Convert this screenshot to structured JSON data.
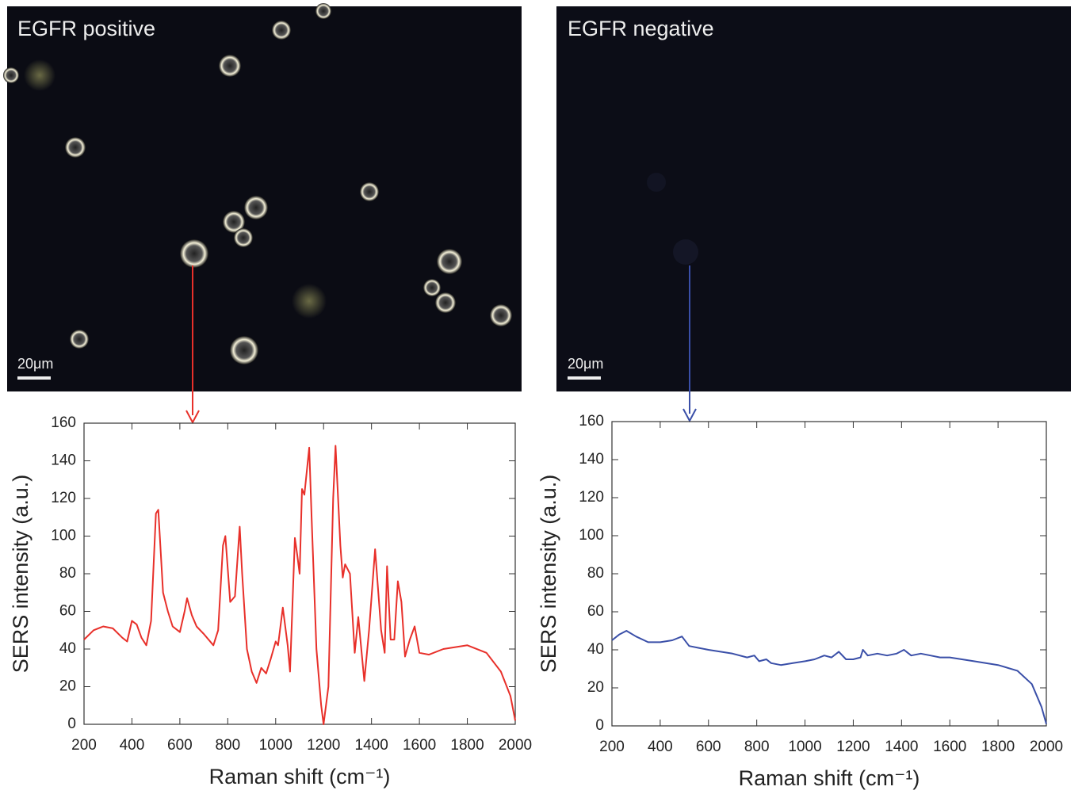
{
  "images": [
    {
      "label": "EGFR positive",
      "scale_bar": "20μm"
    },
    {
      "label": "EGFR negative",
      "scale_bar": "20μm"
    }
  ],
  "chart_data": [
    {
      "type": "line",
      "x_label": "Raman shift (cm⁻¹)",
      "y_label": "SERS intensity (a.u.)",
      "xlim": [
        200,
        2000
      ],
      "ylim": [
        0,
        160
      ],
      "xticks": [
        200,
        400,
        600,
        800,
        1000,
        1200,
        1400,
        1600,
        1800,
        2000
      ],
      "yticks": [
        0,
        20,
        40,
        60,
        80,
        100,
        120,
        140,
        160
      ],
      "x": [
        200,
        240,
        280,
        320,
        360,
        380,
        400,
        420,
        440,
        460,
        480,
        500,
        510,
        530,
        550,
        570,
        600,
        620,
        630,
        650,
        670,
        700,
        740,
        760,
        780,
        790,
        810,
        830,
        850,
        860,
        880,
        900,
        920,
        940,
        960,
        980,
        1000,
        1010,
        1030,
        1050,
        1060,
        1080,
        1090,
        1100,
        1110,
        1120,
        1140,
        1150,
        1170,
        1190,
        1200,
        1220,
        1240,
        1250,
        1270,
        1280,
        1290,
        1310,
        1330,
        1345,
        1370,
        1390,
        1415,
        1440,
        1455,
        1465,
        1480,
        1495,
        1510,
        1525,
        1540,
        1560,
        1580,
        1600,
        1640,
        1700,
        1800,
        1880,
        1940,
        1980,
        2000
      ],
      "series": [
        {
          "color": "#e8302a",
          "values": [
            45,
            50,
            52,
            51,
            46,
            44,
            55,
            53,
            46,
            42,
            55,
            112,
            114,
            70,
            60,
            52,
            49,
            60,
            67,
            58,
            52,
            48,
            42,
            50,
            95,
            100,
            65,
            68,
            105,
            80,
            40,
            28,
            22,
            30,
            27,
            35,
            44,
            42,
            62,
            42,
            28,
            99,
            90,
            80,
            125,
            122,
            147,
            110,
            40,
            10,
            0,
            20,
            120,
            148,
            95,
            78,
            85,
            80,
            38,
            57,
            23,
            50,
            93,
            50,
            38,
            84,
            45,
            45,
            76,
            65,
            36,
            45,
            52,
            38,
            37,
            40,
            42,
            38,
            28,
            15,
            2
          ]
        }
      ]
    },
    {
      "type": "line",
      "x_label": "Raman shift (cm⁻¹)",
      "y_label": "SERS intensity (a.u.)",
      "xlim": [
        200,
        2000
      ],
      "ylim": [
        0,
        160
      ],
      "xticks": [
        200,
        400,
        600,
        800,
        1000,
        1200,
        1400,
        1600,
        1800,
        2000
      ],
      "yticks": [
        0,
        20,
        40,
        60,
        80,
        100,
        120,
        140,
        160
      ],
      "x": [
        200,
        230,
        260,
        300,
        350,
        400,
        450,
        490,
        520,
        560,
        600,
        650,
        700,
        760,
        790,
        810,
        840,
        860,
        900,
        950,
        1000,
        1040,
        1080,
        1110,
        1140,
        1170,
        1200,
        1230,
        1240,
        1260,
        1300,
        1340,
        1380,
        1410,
        1440,
        1480,
        1520,
        1560,
        1600,
        1700,
        1800,
        1880,
        1940,
        1980,
        2000
      ],
      "series": [
        {
          "color": "#3a4fa8",
          "values": [
            45,
            48,
            50,
            47,
            44,
            44,
            45,
            47,
            42,
            41,
            40,
            39,
            38,
            36,
            37,
            34,
            35,
            33,
            32,
            33,
            34,
            35,
            37,
            36,
            39,
            35,
            35,
            36,
            40,
            37,
            38,
            37,
            38,
            40,
            37,
            38,
            37,
            36,
            36,
            34,
            32,
            29,
            22,
            10,
            1
          ]
        }
      ]
    }
  ]
}
